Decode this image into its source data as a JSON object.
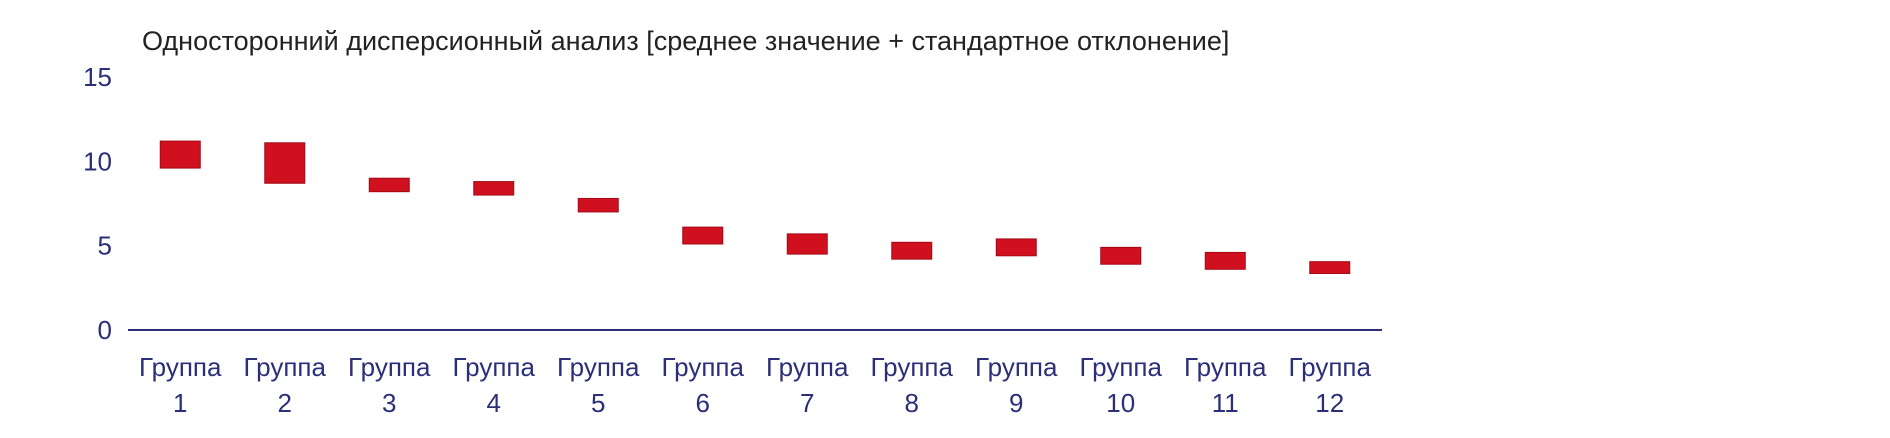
{
  "chart_data": {
    "type": "bar",
    "title": "Односторонний дисперсионный анализ [среднее значение + стандартное отклонение]",
    "xlabel": "",
    "ylabel": "",
    "ylim": [
      0,
      15
    ],
    "yticks": [
      "0",
      "5",
      "10",
      "15"
    ],
    "grid": false,
    "categories": [
      [
        "Группа",
        "1"
      ],
      [
        "Группа",
        "2"
      ],
      [
        "Группа",
        "3"
      ],
      [
        "Группа",
        "4"
      ],
      [
        "Группа",
        "5"
      ],
      [
        "Группа",
        "6"
      ],
      [
        "Группа",
        "7"
      ],
      [
        "Группа",
        "8"
      ],
      [
        "Группа",
        "9"
      ],
      [
        "Группа",
        "10"
      ],
      [
        "Группа",
        "11"
      ],
      [
        "Группа",
        "12"
      ]
    ],
    "series": [
      {
        "mean": [
          10.4,
          9.9,
          8.6,
          8.4,
          7.4,
          5.6,
          5.1,
          4.7,
          4.9,
          4.4,
          4.1,
          3.7
        ],
        "sd": [
          0.8,
          1.2,
          0.4,
          0.4,
          0.4,
          0.5,
          0.6,
          0.5,
          0.5,
          0.5,
          0.5,
          0.35
        ]
      }
    ],
    "colors": {
      "box": "#d0101e",
      "box_edge": "#a30a18",
      "axis": "#2b2f7a",
      "text": "#2b2f7a",
      "title": "#222222"
    }
  }
}
